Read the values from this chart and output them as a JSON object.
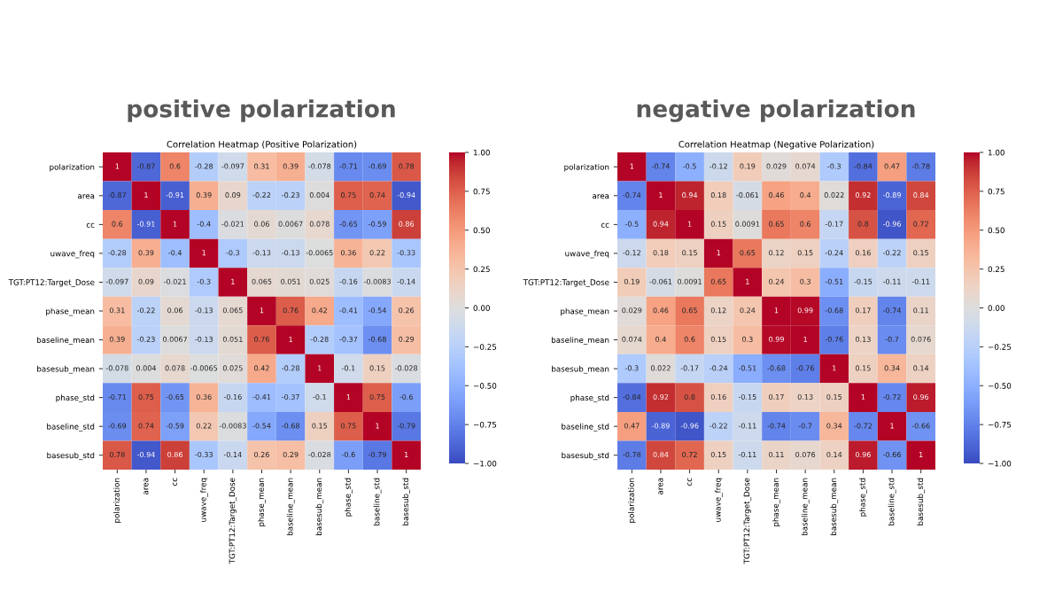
{
  "chart_data": [
    {
      "type": "heatmap",
      "title": "positive polarization",
      "subtitle": "Correlation Heatmap (Positive Polarization)",
      "categories": [
        "polarization",
        "area",
        "cc",
        "uwave_freq",
        "TGT:PT12:Target_Dose",
        "phase_mean",
        "baseline_mean",
        "basesub_mean",
        "phase_std",
        "baseline_std",
        "basesub_std"
      ],
      "y_categories": [
        "polarization",
        "area",
        "cc",
        "uwave_freq",
        "TGT:PT12:Target_Dose",
        "phase_mean",
        "baseline_mean",
        "basesub_mean",
        "phase_std",
        "baseline_std",
        "basesub_std"
      ],
      "cells": [
        [
          1,
          -0.87,
          0.6,
          -0.28,
          -0.097,
          0.31,
          0.39,
          -0.078,
          -0.71,
          -0.69,
          0.78
        ],
        [
          -0.87,
          1,
          -0.91,
          0.39,
          0.09,
          -0.22,
          -0.23,
          0.004,
          0.75,
          0.74,
          -0.94
        ],
        [
          0.6,
          -0.91,
          1,
          -0.4,
          -0.021,
          0.06,
          0.0067,
          0.078,
          -0.65,
          -0.59,
          0.86
        ],
        [
          -0.28,
          0.39,
          -0.4,
          1,
          -0.3,
          -0.13,
          -0.13,
          -0.0065,
          0.36,
          0.22,
          -0.33
        ],
        [
          -0.097,
          0.09,
          -0.021,
          -0.3,
          1,
          0.065,
          0.051,
          0.025,
          -0.16,
          -0.0083,
          -0.14
        ],
        [
          0.31,
          -0.22,
          0.06,
          -0.13,
          0.065,
          1,
          0.76,
          0.42,
          -0.41,
          -0.54,
          0.26
        ],
        [
          0.39,
          -0.23,
          0.0067,
          -0.13,
          0.051,
          0.76,
          1,
          -0.28,
          -0.37,
          -0.68,
          0.29
        ],
        [
          -0.078,
          0.004,
          0.078,
          -0.0065,
          0.025,
          0.42,
          -0.28,
          1,
          -0.1,
          0.15,
          -0.028
        ],
        [
          -0.71,
          0.75,
          -0.65,
          0.36,
          -0.16,
          -0.41,
          -0.37,
          -0.1,
          1,
          0.75,
          -0.6
        ],
        [
          -0.69,
          0.74,
          -0.59,
          0.22,
          -0.0083,
          -0.54,
          -0.68,
          0.15,
          0.75,
          1,
          -0.79
        ],
        [
          0.78,
          -0.94,
          0.86,
          -0.33,
          -0.14,
          0.26,
          0.29,
          -0.028,
          -0.6,
          -0.79,
          1
        ]
      ],
      "data_labels": true,
      "clim": [
        -1,
        1
      ],
      "cticks": [
        {
          "value": -1,
          "label": "−1.00"
        },
        {
          "value": -0.75,
          "label": "−0.75"
        },
        {
          "value": -0.5,
          "label": "−0.50"
        },
        {
          "value": -0.25,
          "label": "−0.25"
        },
        {
          "value": 0,
          "label": "0.00"
        },
        {
          "value": 0.25,
          "label": "0.25"
        },
        {
          "value": 0.5,
          "label": "0.50"
        },
        {
          "value": 0.75,
          "label": "0.75"
        },
        {
          "value": 1,
          "label": "1.00"
        }
      ]
    },
    {
      "type": "heatmap",
      "title": "negative polarization",
      "subtitle": "Correlation Heatmap (Negative Polarization)",
      "categories": [
        "polarization",
        "area",
        "cc",
        "uwave_freq",
        "TGT:PT12:Target_Dose",
        "phase_mean",
        "baseline_mean",
        "basesub_mean",
        "phase_std",
        "baseline_std",
        "basesub_std"
      ],
      "y_categories": [
        "polarization",
        "area",
        "cc",
        "uwave_freq",
        "TGT:PT12:Target_Dose",
        "phase_mean",
        "baseline_mean",
        "basesub_mean",
        "phase_std",
        "baseline_std",
        "basesub_std"
      ],
      "cells": [
        [
          1,
          -0.74,
          -0.5,
          -0.12,
          0.19,
          0.029,
          0.074,
          -0.3,
          -0.84,
          0.47,
          -0.78
        ],
        [
          -0.74,
          1,
          0.94,
          0.18,
          -0.061,
          0.46,
          0.4,
          0.022,
          0.92,
          -0.89,
          0.84
        ],
        [
          -0.5,
          0.94,
          1,
          0.15,
          0.0091,
          0.65,
          0.6,
          -0.17,
          0.8,
          -0.96,
          0.72
        ],
        [
          -0.12,
          0.18,
          0.15,
          1,
          0.65,
          0.12,
          0.15,
          -0.24,
          0.16,
          -0.22,
          0.15
        ],
        [
          0.19,
          -0.061,
          0.0091,
          0.65,
          1,
          0.24,
          0.3,
          -0.51,
          -0.15,
          -0.11,
          -0.11
        ],
        [
          0.029,
          0.46,
          0.65,
          0.12,
          0.24,
          1,
          0.99,
          -0.68,
          0.17,
          -0.74,
          0.11
        ],
        [
          0.074,
          0.4,
          0.6,
          0.15,
          0.3,
          0.99,
          1,
          -0.76,
          0.13,
          -0.7,
          0.076
        ],
        [
          -0.3,
          0.022,
          -0.17,
          -0.24,
          -0.51,
          -0.68,
          -0.76,
          1,
          0.15,
          0.34,
          0.14
        ],
        [
          -0.84,
          0.92,
          0.8,
          0.16,
          -0.15,
          0.17,
          0.13,
          0.15,
          1,
          -0.72,
          0.96
        ],
        [
          0.47,
          -0.89,
          -0.96,
          -0.22,
          -0.11,
          -0.74,
          -0.7,
          0.34,
          -0.72,
          1,
          -0.66
        ],
        [
          -0.78,
          0.84,
          0.72,
          0.15,
          -0.11,
          0.11,
          0.076,
          0.14,
          0.96,
          -0.66,
          1
        ]
      ],
      "data_labels": true,
      "clim": [
        -1,
        1
      ],
      "cticks": [
        {
          "value": -1,
          "label": "−1.00"
        },
        {
          "value": -0.75,
          "label": "−0.75"
        },
        {
          "value": -0.5,
          "label": "−0.50"
        },
        {
          "value": -0.25,
          "label": "−0.25"
        },
        {
          "value": 0,
          "label": "0.00"
        },
        {
          "value": 0.25,
          "label": "0.25"
        },
        {
          "value": 0.5,
          "label": "0.50"
        },
        {
          "value": 0.75,
          "label": "0.75"
        },
        {
          "value": 1,
          "label": "1.00"
        }
      ]
    }
  ]
}
